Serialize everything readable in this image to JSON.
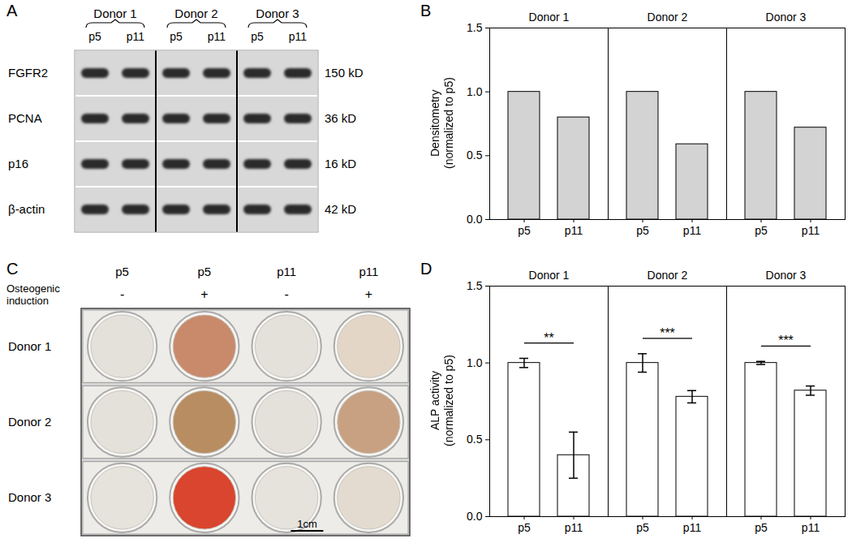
{
  "chart_data": [
    {
      "type": "bar",
      "label": "B",
      "facets": [
        "Donor 1",
        "Donor 2",
        "Donor 3"
      ],
      "categories": [
        "p5",
        "p11"
      ],
      "panels": [
        {
          "title": "Donor 1",
          "values": [
            1.0,
            0.8
          ]
        },
        {
          "title": "Donor 2",
          "values": [
            1.0,
            0.59
          ]
        },
        {
          "title": "Donor 3",
          "values": [
            1.0,
            0.72
          ]
        }
      ],
      "color": "#d3d3d3",
      "ylabel": "Densitometry\n(normalized to p5)",
      "ylim": [
        0,
        1.5
      ],
      "yticks": [
        {
          "value": 0,
          "label": "0.0"
        },
        {
          "value": 0.5,
          "label": "0.5"
        },
        {
          "value": 1,
          "label": "1.0"
        },
        {
          "value": 1.5,
          "label": "1.5"
        }
      ]
    },
    {
      "type": "bar",
      "label": "D",
      "facets": [
        "Donor 1",
        "Donor 2",
        "Donor 3"
      ],
      "categories": [
        "p5",
        "p11"
      ],
      "panels": [
        {
          "title": "Donor 1",
          "values": [
            1.0,
            0.4
          ],
          "errors": [
            0.03,
            0.15
          ],
          "significance": "**"
        },
        {
          "title": "Donor 2",
          "values": [
            1.0,
            0.78
          ],
          "errors": [
            0.06,
            0.04
          ],
          "significance": "***"
        },
        {
          "title": "Donor 3",
          "values": [
            1.0,
            0.82
          ],
          "errors": [
            0.01,
            0.03
          ],
          "significance": "***"
        }
      ],
      "color": "#ffffff",
      "ylabel": "ALP activity\n(normalized to p5)",
      "ylim": [
        0,
        1.5
      ],
      "yticks": [
        {
          "value": 0,
          "label": "0.0"
        },
        {
          "value": 0.5,
          "label": "0.5"
        },
        {
          "value": 1,
          "label": "1.0"
        },
        {
          "value": 1.5,
          "label": "1.5"
        }
      ]
    }
  ],
  "blot": {
    "label": "A",
    "donors": [
      "Donor 1",
      "Donor 2",
      "Donor 3"
    ],
    "lanes": [
      "p5",
      "p11"
    ],
    "proteins": [
      {
        "name": "FGFR2",
        "size": "150 kD"
      },
      {
        "name": "PCNA",
        "size": "36 kD"
      },
      {
        "name": "p16",
        "size": "16 kD"
      },
      {
        "name": "β-actin",
        "size": "42 kD"
      }
    ]
  },
  "staining": {
    "label": "C",
    "row_header": "Osteogenic induction",
    "columns": [
      {
        "passage": "p5",
        "induction": "-"
      },
      {
        "passage": "p5",
        "induction": "+"
      },
      {
        "passage": "p11",
        "induction": "-"
      },
      {
        "passage": "p11",
        "induction": "+"
      }
    ],
    "rows": [
      {
        "name": "Donor 1",
        "colors": [
          "#e4e0da",
          "#c98a6c",
          "#e4e0da",
          "#e3d6c6"
        ]
      },
      {
        "name": "Donor 2",
        "colors": [
          "#e4e0da",
          "#b98d62",
          "#e4e0da",
          "#c8a182"
        ]
      },
      {
        "name": "Donor 3",
        "colors": [
          "#e6e2dc",
          "#d9452e",
          "#e6e2dc",
          "#e4dbd0"
        ]
      }
    ],
    "scale_bar": "1cm"
  }
}
